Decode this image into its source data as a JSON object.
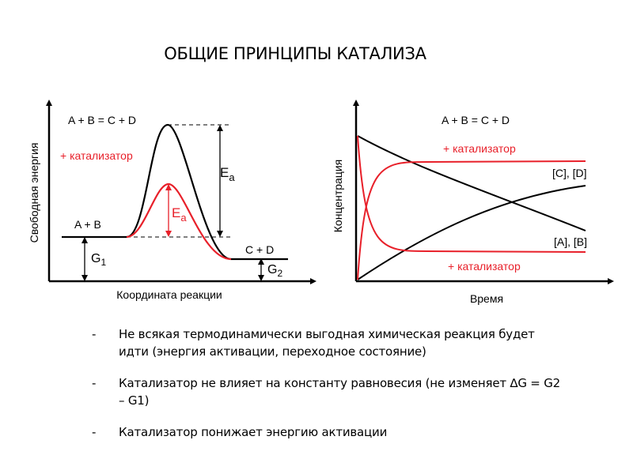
{
  "title": "ОБЩИЕ ПРИНЦИПЫ КАТАЛИЗА",
  "energy_diagram": {
    "reaction": "A + B = C + D",
    "catalyst_label": "+ катализатор",
    "reactants": "A + B",
    "products": "C + D",
    "ea": "E",
    "ea_sub": "a",
    "g1": "G",
    "g1_sub": "1",
    "g2": "G",
    "g2_sub": "2",
    "y_axis": "Свободная энергия",
    "x_axis": "Координата реакции",
    "colors": {
      "uncatalyzed": "#000000",
      "catalyzed": "#e8202a"
    }
  },
  "concentration_plot": {
    "reaction": "A + B = C + D",
    "catalyst_label_top": "+ катализатор",
    "catalyst_label_bottom": "+ катализатор",
    "products_label": "[C], [D]",
    "reactants_label": "[A], [B]",
    "y_axis": "Концентрация",
    "x_axis": "Время",
    "colors": {
      "uncatalyzed": "#000000",
      "catalyzed": "#e8202a"
    }
  },
  "bullets": [
    {
      "dash": "-",
      "text": " Не всякая термодинамически выгодная химическая реакция будет идти (энергия активации, переходное состояние)"
    },
    {
      "dash": "-",
      "text": " Катализатор не влияет на константу равновесия (не изменяет ∆G = G2 – G1)"
    },
    {
      "dash": "-",
      "text": "Катализатор понижает энергию активации"
    }
  ]
}
